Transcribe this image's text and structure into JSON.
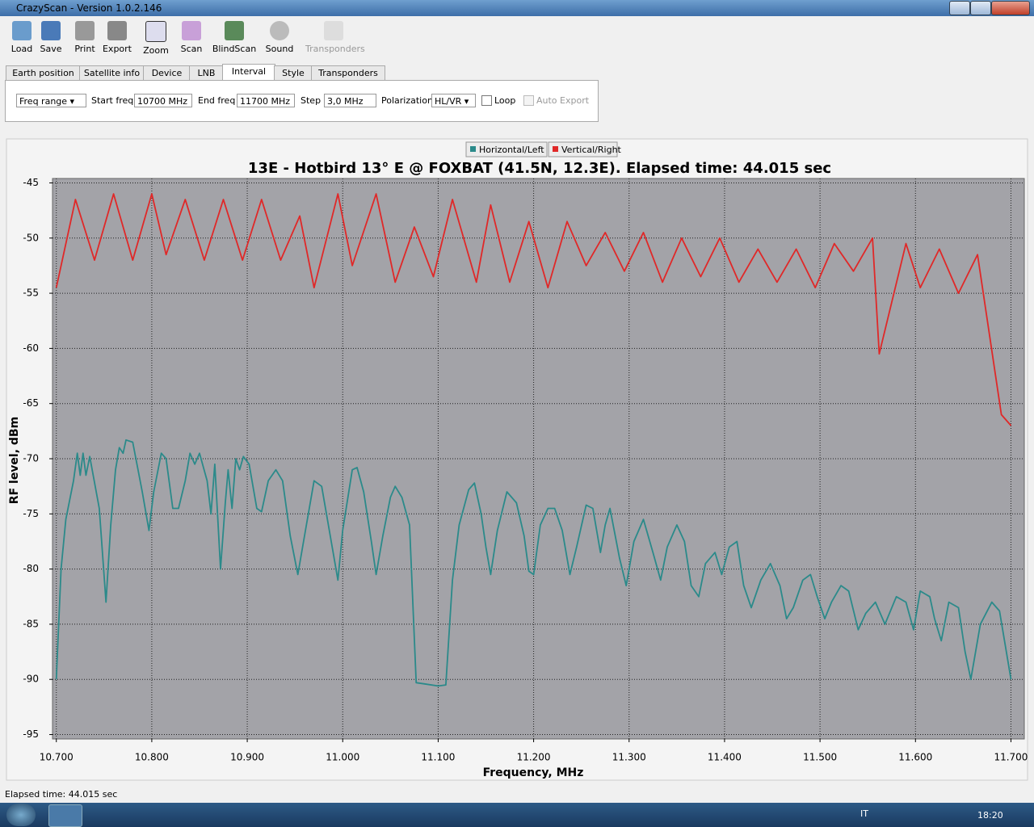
{
  "window": {
    "title": "CrazyScan - Version 1.0.2.146"
  },
  "toolbar": {
    "buttons": [
      "Load",
      "Save",
      "Print",
      "Export",
      "Zoom",
      "Scan",
      "BlindScan",
      "Sound",
      "Transponders"
    ]
  },
  "tabs": {
    "items": [
      "Earth position",
      "Satellite info",
      "Device",
      "LNB",
      "Interval",
      "Style",
      "Transponders"
    ],
    "active": "Interval"
  },
  "controls": {
    "mode": "Freq range",
    "start_label": "Start freq",
    "start_value": "10700 MHz",
    "end_label": "End freq",
    "end_value": "11700 MHz",
    "step_label": "Step",
    "step_value": "3,0 MHz",
    "polarization_label": "Polarization",
    "polarization_value": "HL/VR",
    "loop": "Loop",
    "auto_export": "Auto Export"
  },
  "status": {
    "text": "Elapsed time: 44.015 sec"
  },
  "taskbar": {
    "language": "IT",
    "time": "18:20"
  },
  "chart_data": {
    "type": "line",
    "title": "13E - Hotbird 13° E @ FOXBAT (41.5N, 12.3E). Elapsed time: 44.015 sec",
    "x_label": "Frequency, MHz",
    "y_label": "RF level, dBm",
    "xlim": [
      10696,
      11714
    ],
    "ylim": [
      -95.4,
      -44.6
    ],
    "xticks": [
      {
        "value": 10700,
        "label": "10.700"
      },
      {
        "value": 10800,
        "label": "10.800"
      },
      {
        "value": 10900,
        "label": "10.900"
      },
      {
        "value": 11000,
        "label": "11.000"
      },
      {
        "value": 11100,
        "label": "11.100"
      },
      {
        "value": 11200,
        "label": "11.200"
      },
      {
        "value": 11300,
        "label": "11.300"
      },
      {
        "value": 11400,
        "label": "11.400"
      },
      {
        "value": 11500,
        "label": "11.500"
      },
      {
        "value": 11600,
        "label": "11.600"
      },
      {
        "value": 11700,
        "label": "11.700"
      }
    ],
    "yticks": [
      -45,
      -50,
      -55,
      -60,
      -65,
      -70,
      -75,
      -80,
      -85,
      -90,
      -95
    ],
    "grid": true,
    "legend": "top",
    "series": [
      {
        "name": "Horizontal/Left",
        "color": "#2b8a8a",
        "x": [
          10700,
          10705,
          10710,
          10718,
          10722,
          10725,
          10728,
          10731,
          10735,
          10745,
          10752,
          10757,
          10762,
          10766,
          10770,
          10773,
          10780,
          10790,
          10797,
          10802,
          10810,
          10815,
          10822,
          10828,
          10835,
          10840,
          10845,
          10850,
          10858,
          10862,
          10866,
          10872,
          10877,
          10880,
          10884,
          10888,
          10892,
          10896,
          10902,
          10910,
          10915,
          10922,
          10930,
          10937,
          10945,
          10953,
          10962,
          10970,
          10978,
          10984,
          10990,
          10995,
          11000,
          11010,
          11015,
          11022,
          11030,
          11035,
          11042,
          11050,
          11055,
          11062,
          11070,
          11077,
          11085,
          11100,
          11108,
          11115,
          11122,
          11132,
          11138,
          11145,
          11150,
          11155,
          11162,
          11172,
          11182,
          11190,
          11195,
          11200,
          11207,
          11215,
          11222,
          11230,
          11238,
          11245,
          11255,
          11262,
          11270,
          11275,
          11280,
          11290,
          11297,
          11305,
          11315,
          11325,
          11333,
          11340,
          11350,
          11358,
          11365,
          11373,
          11380,
          11390,
          11397,
          11405,
          11413,
          11420,
          11428,
          11438,
          11448,
          11458,
          11465,
          11472,
          11482,
          11490,
          11497,
          11505,
          11512,
          11522,
          11530,
          11540,
          11548,
          11558,
          11568,
          11580,
          11590,
          11598,
          11605,
          11615,
          11620,
          11627,
          11635,
          11645,
          11652,
          11658,
          11668,
          11680,
          11688,
          11700
        ],
        "values": [
          -90,
          -80,
          -75.5,
          -72,
          -69.5,
          -71.5,
          -69.5,
          -71.5,
          -69.8,
          -74.5,
          -83,
          -76,
          -71,
          -69,
          -69.5,
          -68.3,
          -68.5,
          -73,
          -76.5,
          -73,
          -69.5,
          -70,
          -74.5,
          -74.5,
          -72,
          -69.5,
          -70.5,
          -69.5,
          -72,
          -75,
          -70.5,
          -80,
          -74,
          -71,
          -74.5,
          -70,
          -71,
          -69.8,
          -70.5,
          -74.5,
          -74.8,
          -72,
          -71,
          -72,
          -77,
          -80.5,
          -76,
          -72,
          -72.5,
          -75.5,
          -78.5,
          -81,
          -76.5,
          -71,
          -70.8,
          -73,
          -77.5,
          -80.5,
          -77,
          -73.5,
          -72.5,
          -73.5,
          -76,
          -90.3,
          -90.4,
          -90.6,
          -90.5,
          -81,
          -76,
          -72.8,
          -72.2,
          -75,
          -78,
          -80.5,
          -76.5,
          -73,
          -74,
          -77,
          -80.2,
          -80.5,
          -76,
          -74.5,
          -74.5,
          -76.5,
          -80.5,
          -78,
          -74.2,
          -74.5,
          -78.5,
          -76,
          -74.5,
          -79,
          -81.5,
          -77.5,
          -75.5,
          -78.5,
          -81,
          -78,
          -76,
          -77.5,
          -81.5,
          -82.5,
          -79.5,
          -78.5,
          -80.5,
          -78,
          -77.5,
          -81.5,
          -83.5,
          -81,
          -79.5,
          -81.5,
          -84.5,
          -83.5,
          -81,
          -80.5,
          -82.5,
          -84.5,
          -83,
          -81.5,
          -82,
          -85.5,
          -84,
          -83,
          -85,
          -82.5,
          -83,
          -85.5,
          -82,
          -82.5,
          -84.5,
          -86.5,
          -83,
          -83.5,
          -87.5,
          -90,
          -85,
          -83,
          -83.8,
          -90
        ]
      },
      {
        "name": "Vertical/Right",
        "color": "#e02828",
        "x": [
          10700,
          10720,
          10740,
          10760,
          10780,
          10800,
          10815,
          10835,
          10855,
          10875,
          10895,
          10915,
          10935,
          10955,
          10970,
          10995,
          11010,
          11035,
          11055,
          11075,
          11095,
          11115,
          11140,
          11155,
          11175,
          11195,
          11215,
          11235,
          11255,
          11275,
          11295,
          11315,
          11335,
          11355,
          11375,
          11395,
          11415,
          11435,
          11455,
          11475,
          11495,
          11515,
          11535,
          11555,
          11562,
          11590,
          11605,
          11625,
          11645,
          11665,
          11690,
          11700
        ],
        "values": [
          -54.5,
          -46.5,
          -52,
          -46,
          -52,
          -46,
          -51.5,
          -46.5,
          -52,
          -46.5,
          -52,
          -46.5,
          -52,
          -48,
          -54.5,
          -46,
          -52.5,
          -46,
          -54,
          -49,
          -53.5,
          -46.5,
          -54,
          -47,
          -54,
          -48.5,
          -54.5,
          -48.5,
          -52.5,
          -49.5,
          -53,
          -49.5,
          -54,
          -50,
          -53.5,
          -50,
          -54,
          -51,
          -54,
          -51,
          -54.5,
          -50.5,
          -53,
          -50,
          -60.5,
          -50.5,
          -54.5,
          -51,
          -55,
          -51.5,
          -66,
          -67
        ]
      }
    ]
  }
}
